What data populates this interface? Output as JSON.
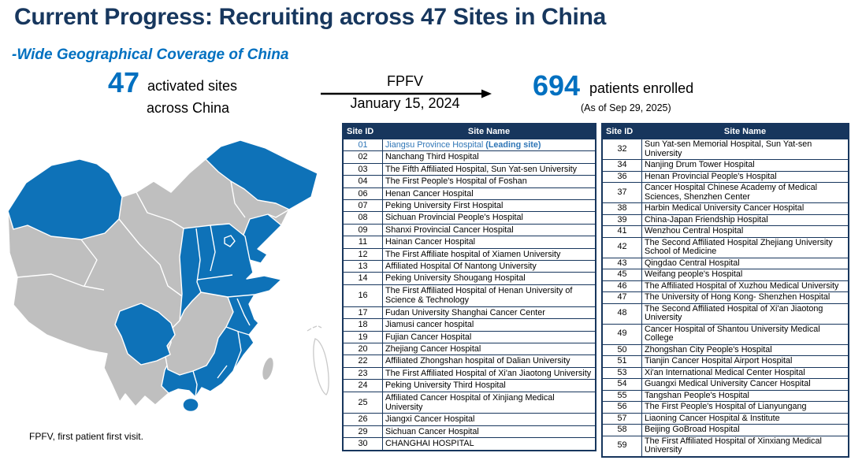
{
  "slide": {
    "title": "Current Progress: Recruiting across 47 Sites in China",
    "subtitle": "-Wide Geographical Coverage of China"
  },
  "stats": {
    "sites_number": "47",
    "sites_label_line1": "activated sites",
    "sites_label_line2": "across China",
    "fpfv_label": "FPFV",
    "fpfv_date": "January 15, 2024",
    "patients_number": "694",
    "patients_label": "patients enrolled",
    "patients_asof": "(As of Sep 29, 2025)"
  },
  "footnote": "FPFV, first patient first visit.",
  "colors": {
    "title_navy": "#17375E",
    "accent_blue": "#0070C0",
    "map_activated_blue": "#0E72B8",
    "map_inactive_gray": "#BFBFBF",
    "table_header_bg": "#17365D",
    "leading_site_text": "#2E75B6"
  },
  "table_left": {
    "headers": [
      "Site ID",
      "Site Name"
    ],
    "rows": [
      {
        "id": "01",
        "name": "Jiangsu Province Hospital",
        "suffix": "(Leading site)",
        "leading": true
      },
      {
        "id": "02",
        "name": "Nanchang Third Hospital"
      },
      {
        "id": "03",
        "name": "The Fifth Affiliated Hospital, Sun Yat-sen University"
      },
      {
        "id": "04",
        "name": "The First People's Hospital of Foshan"
      },
      {
        "id": "06",
        "name": "Henan Cancer Hospital"
      },
      {
        "id": "07",
        "name": "Peking University First Hospital"
      },
      {
        "id": "08",
        "name": "Sichuan Provincial People's Hospital"
      },
      {
        "id": "09",
        "name": "Shanxi Provincial Cancer Hospital"
      },
      {
        "id": "11",
        "name": "Hainan Cancer Hospital"
      },
      {
        "id": "12",
        "name": "The First Affiliate hospital of Xiamen University"
      },
      {
        "id": "13",
        "name": "Affiliated Hospital Of Nantong University"
      },
      {
        "id": "14",
        "name": "Peking University Shougang Hospital"
      },
      {
        "id": "16",
        "name": "The First Affiliated Hospital of Henan University of Science & Technology"
      },
      {
        "id": "17",
        "name": "Fudan University Shanghai Cancer Center"
      },
      {
        "id": "18",
        "name": "Jiamusi cancer hospital"
      },
      {
        "id": "19",
        "name": "Fujian Cancer Hospital"
      },
      {
        "id": "20",
        "name": "Zhejiang Cancer Hospital"
      },
      {
        "id": "22",
        "name": "Affiliated Zhongshan hospital of Dalian University"
      },
      {
        "id": "23",
        "name": "The First Affiliated Hospital of Xi'an Jiaotong University"
      },
      {
        "id": "24",
        "name": "Peking University Third Hospital"
      },
      {
        "id": "25",
        "name": "Affiliated Cancer Hospital of Xinjiang Medical University"
      },
      {
        "id": "26",
        "name": "Jiangxi Cancer Hospital"
      },
      {
        "id": "29",
        "name": "Sichuan Cancer Hospital"
      },
      {
        "id": "30",
        "name": "CHANGHAI HOSPITAL"
      }
    ]
  },
  "table_right": {
    "headers": [
      "Site ID",
      "Site Name"
    ],
    "rows": [
      {
        "id": "32",
        "name": "Sun Yat-sen Memorial Hospital, Sun Yat-sen University"
      },
      {
        "id": "34",
        "name": "Nanjing Drum Tower Hospital"
      },
      {
        "id": "36",
        "name": "Henan Provincial People's Hospital"
      },
      {
        "id": "37",
        "name": "Cancer Hospital Chinese Academy of Medical Sciences, Shenzhen Center"
      },
      {
        "id": "38",
        "name": "Harbin Medical University Cancer Hospital"
      },
      {
        "id": "39",
        "name": "China-Japan Friendship Hospital"
      },
      {
        "id": "41",
        "name": "Wenzhou Central Hospital"
      },
      {
        "id": "42",
        "name": "The Second Affiliated Hospital Zhejiang University School of Medicine"
      },
      {
        "id": "43",
        "name": "Qingdao Central Hospital"
      },
      {
        "id": "45",
        "name": "Weifang people's Hospital"
      },
      {
        "id": "46",
        "name": "The Affiliated Hospital of Xuzhou Medical University"
      },
      {
        "id": "47",
        "name": "The University of Hong Kong- Shenzhen Hospital"
      },
      {
        "id": "48",
        "name": "The Second Affiliated Hospital of Xi'an Jiaotong University"
      },
      {
        "id": "49",
        "name": "Cancer Hospital of Shantou University Medical College"
      },
      {
        "id": "50",
        "name": "Zhongshan City People's Hospital"
      },
      {
        "id": "51",
        "name": "Tianjin Cancer Hospital Airport Hospital"
      },
      {
        "id": "53",
        "name": "Xi'an International Medical Center Hospital"
      },
      {
        "id": "54",
        "name": "Guangxi Medical University Cancer Hospital"
      },
      {
        "id": "55",
        "name": "Tangshan People's Hospital"
      },
      {
        "id": "56",
        "name": "The First People's Hospital of Lianyungang"
      },
      {
        "id": "57",
        "name": "Liaoning Cancer Hospital & Institute"
      },
      {
        "id": "58",
        "name": "Beijing GoBroad Hospital"
      },
      {
        "id": "59",
        "name": "The First Affiliated Hospital of Xinxiang Medical University"
      }
    ]
  }
}
